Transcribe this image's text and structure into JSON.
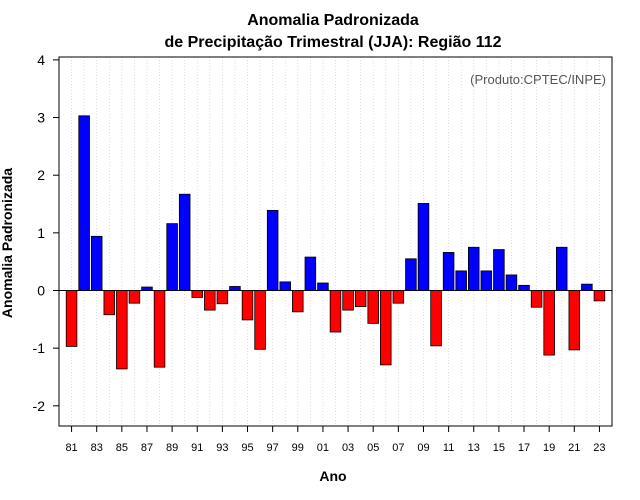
{
  "chart_data": {
    "type": "bar",
    "title": "Anomalia Padronizada",
    "subtitle": "de Precipitação Trimestral (JJA): Região 112",
    "xlabel": "Ano",
    "ylabel": "Anomalia Padronizada",
    "annotation": "(Produto:CPTEC/INPE)",
    "ylim": [
      -2.35,
      4.05
    ],
    "yticks": [
      -2,
      -1,
      0,
      1,
      2,
      3,
      4
    ],
    "ytick_labels": [
      "-2",
      "-1",
      "0",
      "1",
      "2",
      "3",
      "4"
    ],
    "xtick_labels": [
      "81",
      "83",
      "85",
      "87",
      "89",
      "91",
      "93",
      "95",
      "97",
      "99",
      "01",
      "03",
      "05",
      "07",
      "09",
      "11",
      "13",
      "15",
      "17",
      "19",
      "21",
      "23"
    ],
    "grid": "vertical dotted",
    "positive_color": "#0000ff",
    "negative_color": "#ff0000",
    "categories": [
      1981,
      1982,
      1983,
      1984,
      1985,
      1986,
      1987,
      1988,
      1989,
      1990,
      1991,
      1992,
      1993,
      1994,
      1995,
      1996,
      1997,
      1998,
      1999,
      2000,
      2001,
      2002,
      2003,
      2004,
      2005,
      2006,
      2007,
      2008,
      2009,
      2010,
      2011,
      2012,
      2013,
      2014,
      2015,
      2016,
      2017,
      2018,
      2019,
      2020,
      2021,
      2022,
      2023
    ],
    "values": [
      -0.97,
      3.03,
      0.94,
      -0.42,
      -1.36,
      -0.22,
      0.06,
      -1.33,
      1.16,
      1.67,
      -0.12,
      -0.34,
      -0.23,
      0.07,
      -0.51,
      -1.02,
      1.39,
      0.15,
      -0.37,
      0.58,
      0.13,
      -0.72,
      -0.34,
      -0.28,
      -0.57,
      -1.29,
      -0.22,
      0.55,
      1.51,
      -0.96,
      0.66,
      0.34,
      0.75,
      0.34,
      0.71,
      0.27,
      0.09,
      -0.29,
      -1.12,
      0.75,
      -1.03,
      0.11,
      -0.18
    ]
  }
}
